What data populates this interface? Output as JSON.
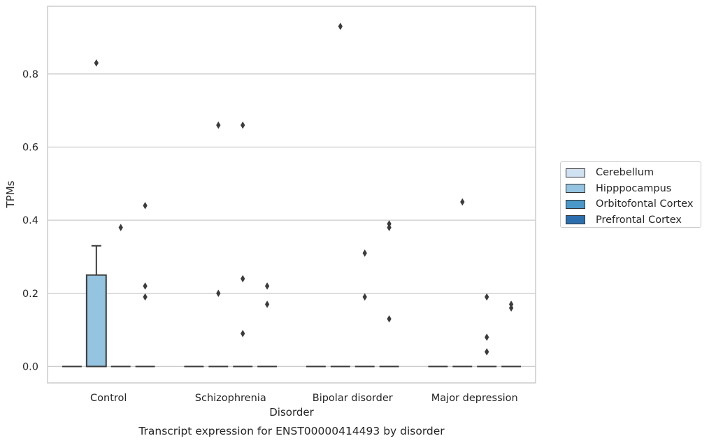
{
  "chart_data": {
    "type": "box",
    "title": "",
    "caption": "Transcript expression for ENST00000414493 by disorder",
    "xlabel": "Disorder",
    "ylabel": "TPMs",
    "categories": [
      "Control",
      "Schizophrenia",
      "Bipolar disorder",
      "Major depression"
    ],
    "ylim": [
      -0.045,
      0.985
    ],
    "yticks": [
      0.0,
      0.2,
      0.4,
      0.6,
      0.8
    ],
    "ytick_labels": [
      "0.0",
      "0.2",
      "0.4",
      "0.6",
      "0.8"
    ],
    "grid": "horizontal",
    "legend_position": "right",
    "series": [
      {
        "name": "Cerebellum",
        "color": "#d0e1f2",
        "boxes": [
          {
            "category": "Control",
            "q1": 0,
            "median": 0,
            "q3": 0,
            "whisker_low": 0,
            "whisker_high": 0,
            "outliers": []
          },
          {
            "category": "Schizophrenia",
            "q1": 0,
            "median": 0,
            "q3": 0,
            "whisker_low": 0,
            "whisker_high": 0,
            "outliers": []
          },
          {
            "category": "Bipolar disorder",
            "q1": 0,
            "median": 0,
            "q3": 0,
            "whisker_low": 0,
            "whisker_high": 0,
            "outliers": []
          },
          {
            "category": "Major depression",
            "q1": 0,
            "median": 0,
            "q3": 0,
            "whisker_low": 0,
            "whisker_high": 0,
            "outliers": []
          }
        ]
      },
      {
        "name": "Hipppocampus",
        "color": "#94c4df",
        "boxes": [
          {
            "category": "Control",
            "q1": 0,
            "median": 0,
            "q3": 0.25,
            "whisker_low": 0,
            "whisker_high": 0.33,
            "outliers": [
              0.83
            ]
          },
          {
            "category": "Schizophrenia",
            "q1": 0,
            "median": 0,
            "q3": 0,
            "whisker_low": 0,
            "whisker_high": 0,
            "outliers": [
              0.2,
              0.66
            ]
          },
          {
            "category": "Bipolar disorder",
            "q1": 0,
            "median": 0,
            "q3": 0,
            "whisker_low": 0,
            "whisker_high": 0,
            "outliers": [
              0.93
            ]
          },
          {
            "category": "Major depression",
            "q1": 0,
            "median": 0,
            "q3": 0,
            "whisker_low": 0,
            "whisker_high": 0,
            "outliers": [
              0.45
            ]
          }
        ]
      },
      {
        "name": "Orbitofontal Cortex",
        "color": "#4a98c9",
        "boxes": [
          {
            "category": "Control",
            "q1": 0,
            "median": 0,
            "q3": 0,
            "whisker_low": 0,
            "whisker_high": 0,
            "outliers": [
              0.38
            ]
          },
          {
            "category": "Schizophrenia",
            "q1": 0,
            "median": 0,
            "q3": 0,
            "whisker_low": 0,
            "whisker_high": 0,
            "outliers": [
              0.09,
              0.24,
              0.66
            ]
          },
          {
            "category": "Bipolar disorder",
            "q1": 0,
            "median": 0,
            "q3": 0,
            "whisker_low": 0,
            "whisker_high": 0,
            "outliers": [
              0.19,
              0.31
            ]
          },
          {
            "category": "Major depression",
            "q1": 0,
            "median": 0,
            "q3": 0,
            "whisker_low": 0,
            "whisker_high": 0,
            "outliers": [
              0.19,
              0.04,
              0.08
            ]
          }
        ]
      },
      {
        "name": "Prefrontal Cortex",
        "color": "#2d6fae",
        "boxes": [
          {
            "category": "Control",
            "q1": 0,
            "median": 0,
            "q3": 0,
            "whisker_low": 0,
            "whisker_high": 0,
            "outliers": [
              0.19,
              0.22,
              0.44
            ]
          },
          {
            "category": "Schizophrenia",
            "q1": 0,
            "median": 0,
            "q3": 0,
            "whisker_low": 0,
            "whisker_high": 0,
            "outliers": [
              0.17,
              0.22
            ]
          },
          {
            "category": "Bipolar disorder",
            "q1": 0,
            "median": 0,
            "q3": 0,
            "whisker_low": 0,
            "whisker_high": 0,
            "outliers": [
              0.13,
              0.38,
              0.39
            ]
          },
          {
            "category": "Major depression",
            "q1": 0,
            "median": 0,
            "q3": 0,
            "whisker_low": 0,
            "whisker_high": 0,
            "outliers": [
              0.16,
              0.17
            ]
          }
        ]
      }
    ]
  }
}
